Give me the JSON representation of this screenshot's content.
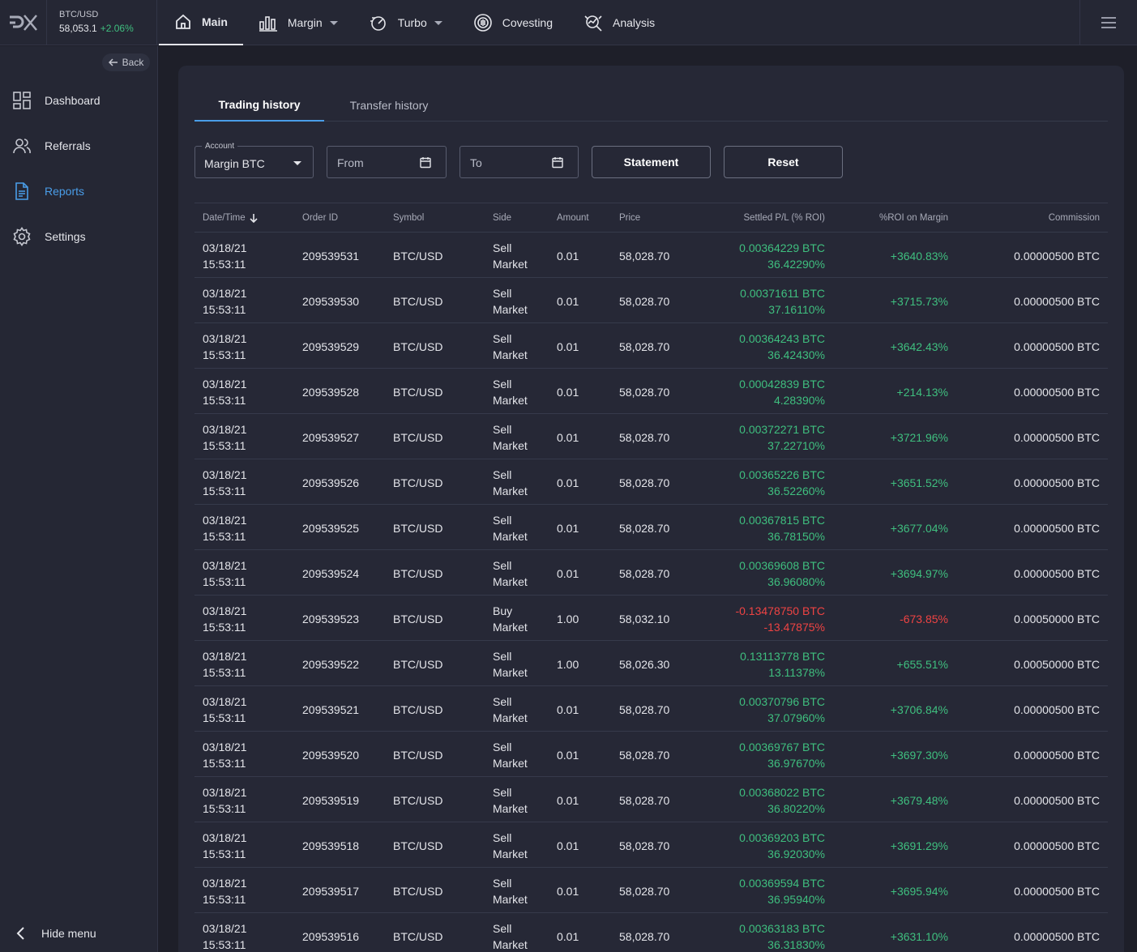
{
  "ticker": {
    "symbol": "BTC/USD",
    "price": "58,053.1",
    "change": "+2.06%"
  },
  "nav": {
    "main": "Main",
    "margin": "Margin",
    "turbo": "Turbo",
    "covesting": "Covesting",
    "analysis": "Analysis"
  },
  "sidebar": {
    "back": "Back",
    "items": [
      {
        "label": "Dashboard"
      },
      {
        "label": "Referrals"
      },
      {
        "label": "Reports"
      },
      {
        "label": "Settings"
      }
    ],
    "hide_menu": "Hide menu"
  },
  "tabs": {
    "trading": "Trading history",
    "transfer": "Transfer history"
  },
  "filters": {
    "account_label": "Account",
    "account_value": "Margin BTC",
    "from_placeholder": "From",
    "to_placeholder": "To",
    "statement": "Statement",
    "reset": "Reset"
  },
  "table": {
    "headers": {
      "datetime": "Date/Time",
      "order_id": "Order ID",
      "symbol": "Symbol",
      "side": "Side",
      "amount": "Amount",
      "price": "Price",
      "settled": "Settled P/L (% ROI)",
      "roi": "%ROI on Margin",
      "commission": "Commission"
    },
    "rows": [
      {
        "date": "03/18/21",
        "time": "15:53:11",
        "order_id": "209539531",
        "symbol": "BTC/USD",
        "side": "Sell",
        "type": "Market",
        "amount": "0.01",
        "price": "58,028.70",
        "pl": "0.00364229 BTC",
        "pl_pct": "36.42290%",
        "roi": "+3640.83%",
        "commission": "0.00000500 BTC",
        "negative": false
      },
      {
        "date": "03/18/21",
        "time": "15:53:11",
        "order_id": "209539530",
        "symbol": "BTC/USD",
        "side": "Sell",
        "type": "Market",
        "amount": "0.01",
        "price": "58,028.70",
        "pl": "0.00371611 BTC",
        "pl_pct": "37.16110%",
        "roi": "+3715.73%",
        "commission": "0.00000500 BTC",
        "negative": false
      },
      {
        "date": "03/18/21",
        "time": "15:53:11",
        "order_id": "209539529",
        "symbol": "BTC/USD",
        "side": "Sell",
        "type": "Market",
        "amount": "0.01",
        "price": "58,028.70",
        "pl": "0.00364243 BTC",
        "pl_pct": "36.42430%",
        "roi": "+3642.43%",
        "commission": "0.00000500 BTC",
        "negative": false
      },
      {
        "date": "03/18/21",
        "time": "15:53:11",
        "order_id": "209539528",
        "symbol": "BTC/USD",
        "side": "Sell",
        "type": "Market",
        "amount": "0.01",
        "price": "58,028.70",
        "pl": "0.00042839 BTC",
        "pl_pct": "4.28390%",
        "roi": "+214.13%",
        "commission": "0.00000500 BTC",
        "negative": false
      },
      {
        "date": "03/18/21",
        "time": "15:53:11",
        "order_id": "209539527",
        "symbol": "BTC/USD",
        "side": "Sell",
        "type": "Market",
        "amount": "0.01",
        "price": "58,028.70",
        "pl": "0.00372271 BTC",
        "pl_pct": "37.22710%",
        "roi": "+3721.96%",
        "commission": "0.00000500 BTC",
        "negative": false
      },
      {
        "date": "03/18/21",
        "time": "15:53:11",
        "order_id": "209539526",
        "symbol": "BTC/USD",
        "side": "Sell",
        "type": "Market",
        "amount": "0.01",
        "price": "58,028.70",
        "pl": "0.00365226 BTC",
        "pl_pct": "36.52260%",
        "roi": "+3651.52%",
        "commission": "0.00000500 BTC",
        "negative": false
      },
      {
        "date": "03/18/21",
        "time": "15:53:11",
        "order_id": "209539525",
        "symbol": "BTC/USD",
        "side": "Sell",
        "type": "Market",
        "amount": "0.01",
        "price": "58,028.70",
        "pl": "0.00367815 BTC",
        "pl_pct": "36.78150%",
        "roi": "+3677.04%",
        "commission": "0.00000500 BTC",
        "negative": false
      },
      {
        "date": "03/18/21",
        "time": "15:53:11",
        "order_id": "209539524",
        "symbol": "BTC/USD",
        "side": "Sell",
        "type": "Market",
        "amount": "0.01",
        "price": "58,028.70",
        "pl": "0.00369608 BTC",
        "pl_pct": "36.96080%",
        "roi": "+3694.97%",
        "commission": "0.00000500 BTC",
        "negative": false
      },
      {
        "date": "03/18/21",
        "time": "15:53:11",
        "order_id": "209539523",
        "symbol": "BTC/USD",
        "side": "Buy",
        "type": "Market",
        "amount": "1.00",
        "price": "58,032.10",
        "pl": "-0.13478750 BTC",
        "pl_pct": "-13.47875%",
        "roi": "-673.85%",
        "commission": "0.00050000 BTC",
        "negative": true
      },
      {
        "date": "03/18/21",
        "time": "15:53:11",
        "order_id": "209539522",
        "symbol": "BTC/USD",
        "side": "Sell",
        "type": "Market",
        "amount": "1.00",
        "price": "58,026.30",
        "pl": "0.13113778 BTC",
        "pl_pct": "13.11378%",
        "roi": "+655.51%",
        "commission": "0.00050000 BTC",
        "negative": false
      },
      {
        "date": "03/18/21",
        "time": "15:53:11",
        "order_id": "209539521",
        "symbol": "BTC/USD",
        "side": "Sell",
        "type": "Market",
        "amount": "0.01",
        "price": "58,028.70",
        "pl": "0.00370796 BTC",
        "pl_pct": "37.07960%",
        "roi": "+3706.84%",
        "commission": "0.00000500 BTC",
        "negative": false
      },
      {
        "date": "03/18/21",
        "time": "15:53:11",
        "order_id": "209539520",
        "symbol": "BTC/USD",
        "side": "Sell",
        "type": "Market",
        "amount": "0.01",
        "price": "58,028.70",
        "pl": "0.00369767 BTC",
        "pl_pct": "36.97670%",
        "roi": "+3697.30%",
        "commission": "0.00000500 BTC",
        "negative": false
      },
      {
        "date": "03/18/21",
        "time": "15:53:11",
        "order_id": "209539519",
        "symbol": "BTC/USD",
        "side": "Sell",
        "type": "Market",
        "amount": "0.01",
        "price": "58,028.70",
        "pl": "0.00368022 BTC",
        "pl_pct": "36.80220%",
        "roi": "+3679.48%",
        "commission": "0.00000500 BTC",
        "negative": false
      },
      {
        "date": "03/18/21",
        "time": "15:53:11",
        "order_id": "209539518",
        "symbol": "BTC/USD",
        "side": "Sell",
        "type": "Market",
        "amount": "0.01",
        "price": "58,028.70",
        "pl": "0.00369203 BTC",
        "pl_pct": "36.92030%",
        "roi": "+3691.29%",
        "commission": "0.00000500 BTC",
        "negative": false
      },
      {
        "date": "03/18/21",
        "time": "15:53:11",
        "order_id": "209539517",
        "symbol": "BTC/USD",
        "side": "Sell",
        "type": "Market",
        "amount": "0.01",
        "price": "58,028.70",
        "pl": "0.00369594 BTC",
        "pl_pct": "36.95940%",
        "roi": "+3695.94%",
        "commission": "0.00000500 BTC",
        "negative": false
      },
      {
        "date": "03/18/21",
        "time": "15:53:11",
        "order_id": "209539516",
        "symbol": "BTC/USD",
        "side": "Sell",
        "type": "Market",
        "amount": "0.01",
        "price": "58,028.70",
        "pl": "0.00363183 BTC",
        "pl_pct": "36.31830%",
        "roi": "+3631.10%",
        "commission": "0.00000500 BTC",
        "negative": false
      }
    ]
  },
  "colors": {
    "accent": "#4a9de8",
    "positive": "#3fbf7f",
    "negative": "#ef4343",
    "background": "#1e1f29",
    "panel": "#262836"
  }
}
